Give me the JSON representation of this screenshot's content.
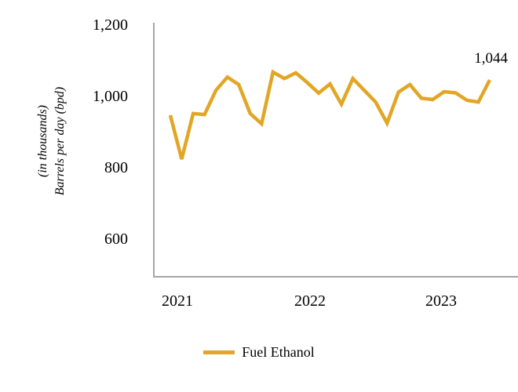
{
  "chart_data": {
    "type": "line",
    "title": "",
    "ylabel_line1": "Barrels per day (bpd)",
    "ylabel_line2": "(in thousands)",
    "xlabel": "",
    "grid": false,
    "legend_position": "bottom",
    "y_ticks": [
      {
        "label": "1,200",
        "value": 1200
      },
      {
        "label": "1,000",
        "value": 1000
      },
      {
        "label": "800",
        "value": 800
      },
      {
        "label": "600",
        "value": 600
      }
    ],
    "ylim_visible": [
      490,
      1200
    ],
    "x_year_labels": [
      "2021",
      "2022",
      "2023"
    ],
    "x": [
      "Jan 2021",
      "Feb 2021",
      "Mar 2021",
      "Apr 2021",
      "May 2021",
      "Jun 2021",
      "Jul 2021",
      "Aug 2021",
      "Sep 2021",
      "Oct 2021",
      "Nov 2021",
      "Dec 2021",
      "Jan 2022",
      "Feb 2022",
      "Mar 2022",
      "Apr 2022",
      "May 2022",
      "Jun 2022",
      "Jul 2022",
      "Aug 2022",
      "Sep 2022",
      "Oct 2022",
      "Nov 2022",
      "Dec 2022",
      "Jan 2023",
      "Feb 2023",
      "Mar 2023",
      "Apr 2023",
      "May 2023"
    ],
    "series": [
      {
        "name": "Fuel Ethanol",
        "color": "#E2A626",
        "values": [
          945,
          822,
          950,
          947,
          1015,
          1052,
          1031,
          950,
          921,
          1066,
          1048,
          1064,
          1037,
          1007,
          1033,
          976,
          1048,
          1015,
          982,
          923,
          1010,
          1031,
          993,
          989,
          1011,
          1008,
          987,
          982,
          1044
        ]
      }
    ],
    "end_label": "1,044"
  },
  "legend": {
    "label": "Fuel Ethanol"
  },
  "colors": {
    "line": "#E2A626",
    "axis": "#A6A6A6",
    "text": "#000000"
  }
}
